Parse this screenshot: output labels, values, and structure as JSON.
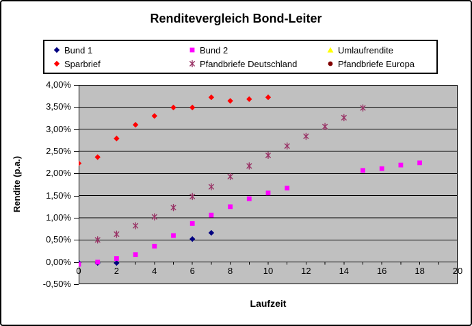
{
  "chart": {
    "title": "Renditevergleich Bond-Leiter",
    "x_axis_title": "Laufzeit",
    "y_axis_title": "Rendite (p.a.)",
    "plot_bg_color": "#C0C0C0",
    "gridline_color": "#000000",
    "frame_border_color": "#000000"
  },
  "legend": {
    "items": [
      {
        "label": "Bund 1",
        "marker": "diamond",
        "color": "#000080"
      },
      {
        "label": "Bund 2",
        "marker": "square",
        "color": "#FF00FF"
      },
      {
        "label": "Umlaufrendite",
        "marker": "triangle",
        "color": "#FFFF00"
      },
      {
        "label": "Sparbrief",
        "marker": "diamond",
        "color": "#FF0000"
      },
      {
        "label": "Pfandbriefe Deutschland",
        "marker": "asterisk",
        "color": "#993366"
      },
      {
        "label": "Pfandbriefe Europa",
        "marker": "circle",
        "color": "#800000"
      }
    ]
  },
  "chart_data": {
    "type": "scatter",
    "title": "Renditevergleich Bond-Leiter",
    "xlabel": "Laufzeit",
    "ylabel": "Rendite (p.a.)",
    "xlim": [
      0,
      20
    ],
    "ylim": [
      -0.5,
      4.0
    ],
    "grid": "horizontal",
    "legend_position": "top",
    "x_minor_tick_step": 1,
    "x_ticks": [
      {
        "v": 0,
        "label": "0"
      },
      {
        "v": 2,
        "label": "2"
      },
      {
        "v": 4,
        "label": "4"
      },
      {
        "v": 6,
        "label": "6"
      },
      {
        "v": 8,
        "label": "8"
      },
      {
        "v": 10,
        "label": "10"
      },
      {
        "v": 12,
        "label": "12"
      },
      {
        "v": 14,
        "label": "14"
      },
      {
        "v": 16,
        "label": "16"
      },
      {
        "v": 18,
        "label": "18"
      },
      {
        "v": 20,
        "label": "20"
      }
    ],
    "y_ticks": [
      {
        "v": 4.0,
        "label": "4,00%"
      },
      {
        "v": 3.5,
        "label": "3,50%"
      },
      {
        "v": 3.0,
        "label": "3,00%"
      },
      {
        "v": 2.5,
        "label": "2,50%"
      },
      {
        "v": 2.0,
        "label": "2,00%"
      },
      {
        "v": 1.5,
        "label": "1,50%"
      },
      {
        "v": 1.0,
        "label": "1,00%"
      },
      {
        "v": 0.5,
        "label": "0,50%"
      },
      {
        "v": 0.0,
        "label": "0,00%"
      },
      {
        "v": -0.5,
        "label": "-0,50%"
      }
    ],
    "series": [
      {
        "name": "Bund 1",
        "marker": "diamond",
        "color": "#000080",
        "points": [
          [
            0,
            -0.01
          ],
          [
            1,
            -0.02
          ],
          [
            2,
            -0.02
          ],
          [
            6,
            0.52
          ],
          [
            7,
            0.66
          ]
        ]
      },
      {
        "name": "Bund 2",
        "marker": "square",
        "color": "#FF00FF",
        "points": [
          [
            0,
            -0.05
          ],
          [
            1,
            0.0
          ],
          [
            2,
            0.08
          ],
          [
            3,
            0.17
          ],
          [
            4,
            0.36
          ],
          [
            5,
            0.6
          ],
          [
            6,
            0.87
          ],
          [
            7,
            1.06
          ],
          [
            8,
            1.25
          ],
          [
            9,
            1.43
          ],
          [
            10,
            1.56
          ],
          [
            11,
            1.67
          ],
          [
            15,
            2.07
          ],
          [
            16,
            2.11
          ],
          [
            17,
            2.19
          ],
          [
            18,
            2.24
          ]
        ]
      },
      {
        "name": "Umlaufrendite",
        "marker": "triangle",
        "color": "#FFFF00",
        "points": []
      },
      {
        "name": "Sparbrief",
        "marker": "diamond",
        "color": "#FF0000",
        "points": [
          [
            0,
            2.23
          ],
          [
            1,
            2.37
          ],
          [
            2,
            2.79
          ],
          [
            3,
            3.1
          ],
          [
            4,
            3.3
          ],
          [
            5,
            3.49
          ],
          [
            6,
            3.49
          ],
          [
            7,
            3.72
          ],
          [
            8,
            3.64
          ],
          [
            9,
            3.68
          ],
          [
            10,
            3.72
          ]
        ]
      },
      {
        "name": "Pfandbriefe Deutschland",
        "marker": "asterisk",
        "color": "#993366",
        "points": [
          [
            1,
            0.5
          ],
          [
            2,
            0.63
          ],
          [
            3,
            0.82
          ],
          [
            4,
            1.02
          ],
          [
            5,
            1.23
          ],
          [
            6,
            1.48
          ],
          [
            7,
            1.7
          ],
          [
            8,
            1.93
          ],
          [
            9,
            2.17
          ],
          [
            10,
            2.41
          ],
          [
            11,
            2.62
          ],
          [
            12,
            2.84
          ],
          [
            13,
            3.06
          ],
          [
            14,
            3.26
          ],
          [
            15,
            3.48
          ]
        ]
      },
      {
        "name": "Pfandbriefe Europa",
        "marker": "circle",
        "color": "#800000",
        "points": []
      }
    ]
  }
}
